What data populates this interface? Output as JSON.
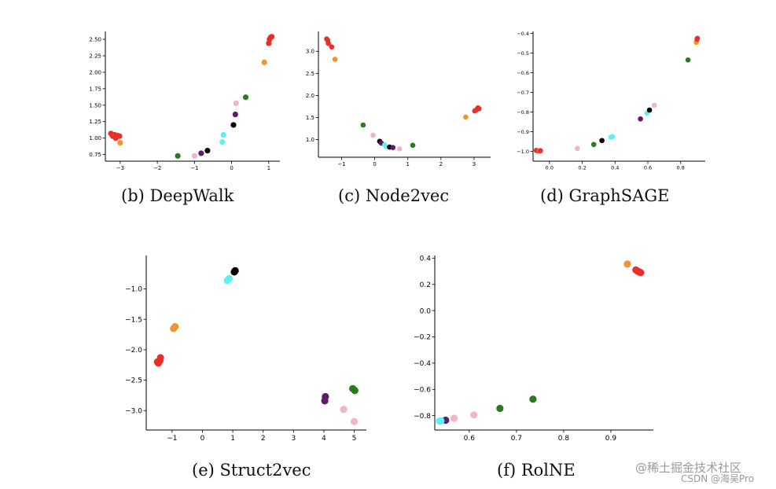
{
  "colors": {
    "red": "#e8302a",
    "orange": "#f0962e",
    "green": "#2a7a22",
    "pink": "#f2b4c8",
    "purple": "#5e1c68",
    "black": "#000000",
    "cyan": "#5ef0f5"
  },
  "chart_data": [
    {
      "type": "scatter",
      "caption": "(b) DeepWalk",
      "xlim": [
        -3.4,
        1.3
      ],
      "ylim": [
        0.65,
        2.62
      ],
      "xticks": [
        -3,
        -2,
        -1,
        0,
        1
      ],
      "yticks": [
        0.75,
        1.0,
        1.25,
        1.5,
        1.75,
        2.0,
        2.25,
        2.5
      ],
      "ytick_labels": [
        "0.75",
        "1.00",
        "1.25",
        "1.50",
        "1.75",
        "2.00",
        "2.25",
        "2.50"
      ],
      "points": [
        {
          "x": -3.25,
          "y": 1.07,
          "c": "red"
        },
        {
          "x": -3.2,
          "y": 1.03,
          "c": "red"
        },
        {
          "x": -3.15,
          "y": 1.05,
          "c": "red"
        },
        {
          "x": -3.12,
          "y": 1.0,
          "c": "red"
        },
        {
          "x": -3.08,
          "y": 1.04,
          "c": "red"
        },
        {
          "x": -3.02,
          "y": 1.03,
          "c": "red"
        },
        {
          "x": -3.0,
          "y": 0.93,
          "c": "orange"
        },
        {
          "x": -1.45,
          "y": 0.73,
          "c": "green"
        },
        {
          "x": -1.0,
          "y": 0.73,
          "c": "pink"
        },
        {
          "x": -0.82,
          "y": 0.77,
          "c": "purple"
        },
        {
          "x": -0.65,
          "y": 0.81,
          "c": "black"
        },
        {
          "x": -0.25,
          "y": 0.94,
          "c": "cyan"
        },
        {
          "x": -0.22,
          "y": 1.05,
          "c": "cyan"
        },
        {
          "x": 0.05,
          "y": 1.2,
          "c": "black"
        },
        {
          "x": 0.1,
          "y": 1.36,
          "c": "purple"
        },
        {
          "x": 0.12,
          "y": 1.53,
          "c": "pink"
        },
        {
          "x": 0.38,
          "y": 1.62,
          "c": "green"
        },
        {
          "x": 0.88,
          "y": 2.15,
          "c": "orange"
        },
        {
          "x": 1.0,
          "y": 2.44,
          "c": "red"
        },
        {
          "x": 1.02,
          "y": 2.5,
          "c": "red"
        },
        {
          "x": 1.05,
          "y": 2.53,
          "c": "red"
        },
        {
          "x": 1.08,
          "y": 2.54,
          "c": "red"
        }
      ]
    },
    {
      "type": "scatter",
      "caption": "(c) Node2vec",
      "xlim": [
        -1.7,
        3.5
      ],
      "ylim": [
        0.6,
        3.45
      ],
      "xticks": [
        -1,
        0,
        1,
        2,
        3
      ],
      "yticks": [
        1.0,
        1.5,
        2.0,
        2.5,
        3.0
      ],
      "ytick_labels": [
        "1.0",
        "1.5",
        "2.0",
        "2.5",
        "3.0"
      ],
      "points": [
        {
          "x": -1.45,
          "y": 3.28,
          "c": "red"
        },
        {
          "x": -1.42,
          "y": 3.25,
          "c": "red"
        },
        {
          "x": -1.4,
          "y": 3.18,
          "c": "red"
        },
        {
          "x": -1.3,
          "y": 3.1,
          "c": "red"
        },
        {
          "x": -1.2,
          "y": 2.82,
          "c": "orange"
        },
        {
          "x": -0.35,
          "y": 1.33,
          "c": "green"
        },
        {
          "x": -0.05,
          "y": 1.1,
          "c": "pink"
        },
        {
          "x": 0.15,
          "y": 0.96,
          "c": "black"
        },
        {
          "x": 0.2,
          "y": 0.92,
          "c": "purple"
        },
        {
          "x": 0.3,
          "y": 0.88,
          "c": "cyan"
        },
        {
          "x": 0.35,
          "y": 0.84,
          "c": "cyan"
        },
        {
          "x": 0.45,
          "y": 0.83,
          "c": "black"
        },
        {
          "x": 0.55,
          "y": 0.82,
          "c": "purple"
        },
        {
          "x": 0.75,
          "y": 0.79,
          "c": "pink"
        },
        {
          "x": 1.15,
          "y": 0.87,
          "c": "green"
        },
        {
          "x": 2.75,
          "y": 1.51,
          "c": "orange"
        },
        {
          "x": 3.02,
          "y": 1.65,
          "c": "red"
        },
        {
          "x": 3.08,
          "y": 1.68,
          "c": "red"
        },
        {
          "x": 3.12,
          "y": 1.72,
          "c": "red"
        },
        {
          "x": 3.15,
          "y": 1.7,
          "c": "red"
        }
      ]
    },
    {
      "type": "scatter",
      "caption": "(d) GraphSAGE",
      "xlim": [
        -0.1,
        0.95
      ],
      "ylim": [
        -1.05,
        -0.39
      ],
      "xticks": [
        0.0,
        0.2,
        0.4,
        0.6,
        0.8
      ],
      "xtick_labels": [
        "0.0",
        "0.2",
        "0.4",
        "0.6",
        "0.8"
      ],
      "yticks": [
        -1.0,
        -0.9,
        -0.8,
        -0.7,
        -0.6,
        -0.5,
        -0.4
      ],
      "ytick_labels": [
        "−1.0",
        "−0.9",
        "−0.8",
        "−0.7",
        "−0.6",
        "−0.5",
        "−0.4"
      ],
      "points": [
        {
          "x": -0.08,
          "y": -0.995,
          "c": "red"
        },
        {
          "x": -0.07,
          "y": -0.998,
          "c": "red"
        },
        {
          "x": -0.06,
          "y": -0.996,
          "c": "orange"
        },
        {
          "x": -0.055,
          "y": -0.997,
          "c": "red"
        },
        {
          "x": 0.17,
          "y": -0.985,
          "c": "pink"
        },
        {
          "x": 0.27,
          "y": -0.965,
          "c": "green"
        },
        {
          "x": 0.32,
          "y": -0.945,
          "c": "black"
        },
        {
          "x": 0.375,
          "y": -0.928,
          "c": "cyan"
        },
        {
          "x": 0.385,
          "y": -0.925,
          "c": "cyan"
        },
        {
          "x": 0.555,
          "y": -0.835,
          "c": "purple"
        },
        {
          "x": 0.595,
          "y": -0.805,
          "c": "cyan"
        },
        {
          "x": 0.61,
          "y": -0.79,
          "c": "black"
        },
        {
          "x": 0.64,
          "y": -0.765,
          "c": "pink"
        },
        {
          "x": 0.845,
          "y": -0.535,
          "c": "green"
        },
        {
          "x": 0.895,
          "y": -0.445,
          "c": "orange"
        },
        {
          "x": 0.9,
          "y": -0.43,
          "c": "red"
        },
        {
          "x": 0.902,
          "y": -0.425,
          "c": "red"
        }
      ]
    },
    {
      "type": "scatter",
      "caption": "(e) Struct2vec",
      "xlim": [
        -1.85,
        5.4
      ],
      "ylim": [
        -3.32,
        -0.45
      ],
      "xticks": [
        -1,
        0,
        1,
        2,
        3,
        4,
        5
      ],
      "xtick_labels": [
        "−1",
        "0",
        "1",
        "2",
        "3",
        "4",
        "5"
      ],
      "yticks": [
        -3.0,
        -2.5,
        -2.0,
        -1.5,
        -1.0
      ],
      "ytick_labels": [
        "−3.0",
        "−2.5",
        "−2.0",
        "−1.5",
        "−1.0"
      ],
      "points": [
        {
          "x": 1.05,
          "y": -0.72,
          "c": "black"
        },
        {
          "x": 1.08,
          "y": -0.7,
          "c": "black"
        },
        {
          "x": 0.82,
          "y": -0.86,
          "c": "cyan"
        },
        {
          "x": 0.88,
          "y": -0.83,
          "c": "cyan"
        },
        {
          "x": -0.95,
          "y": -1.65,
          "c": "orange"
        },
        {
          "x": -0.9,
          "y": -1.62,
          "c": "orange"
        },
        {
          "x": -1.45,
          "y": -2.22,
          "c": "red"
        },
        {
          "x": -1.4,
          "y": -2.18,
          "c": "red"
        },
        {
          "x": -1.38,
          "y": -2.13,
          "c": "red"
        },
        {
          "x": -1.48,
          "y": -2.2,
          "c": "red"
        },
        {
          "x": 4.05,
          "y": -2.77,
          "c": "purple"
        },
        {
          "x": 4.03,
          "y": -2.84,
          "c": "purple"
        },
        {
          "x": 4.65,
          "y": -2.98,
          "c": "pink"
        },
        {
          "x": 5.0,
          "y": -3.18,
          "c": "pink"
        },
        {
          "x": 4.95,
          "y": -2.64,
          "c": "green"
        },
        {
          "x": 5.02,
          "y": -2.67,
          "c": "green"
        }
      ]
    },
    {
      "type": "scatter",
      "caption": "(f) RolNE",
      "xlim": [
        0.527,
        0.99
      ],
      "ylim": [
        -0.91,
        0.42
      ],
      "xticks": [
        0.6,
        0.7,
        0.8,
        0.9
      ],
      "xtick_labels": [
        "0.6",
        "0.7",
        "0.8",
        "0.9"
      ],
      "yticks": [
        -0.8,
        -0.6,
        -0.4,
        -0.2,
        0.0,
        0.2,
        0.4
      ],
      "ytick_labels": [
        "−0.8",
        "−0.6",
        "−0.4",
        "−0.2",
        "0.0",
        "0.2",
        "0.4"
      ],
      "points": [
        {
          "x": 0.935,
          "y": 0.355,
          "c": "orange"
        },
        {
          "x": 0.953,
          "y": 0.31,
          "c": "red"
        },
        {
          "x": 0.957,
          "y": 0.3,
          "c": "red"
        },
        {
          "x": 0.96,
          "y": 0.295,
          "c": "red"
        },
        {
          "x": 0.963,
          "y": 0.29,
          "c": "red"
        },
        {
          "x": 0.735,
          "y": -0.675,
          "c": "green"
        },
        {
          "x": 0.665,
          "y": -0.745,
          "c": "green"
        },
        {
          "x": 0.61,
          "y": -0.795,
          "c": "pink"
        },
        {
          "x": 0.568,
          "y": -0.82,
          "c": "pink"
        },
        {
          "x": 0.55,
          "y": -0.835,
          "c": "purple"
        },
        {
          "x": 0.54,
          "y": -0.84,
          "c": "cyan"
        },
        {
          "x": 0.537,
          "y": -0.842,
          "c": "cyan"
        }
      ]
    }
  ],
  "watermark": {
    "line1": "@稀土掘金技术社区",
    "line2": "CSDN @海吴Pro"
  }
}
